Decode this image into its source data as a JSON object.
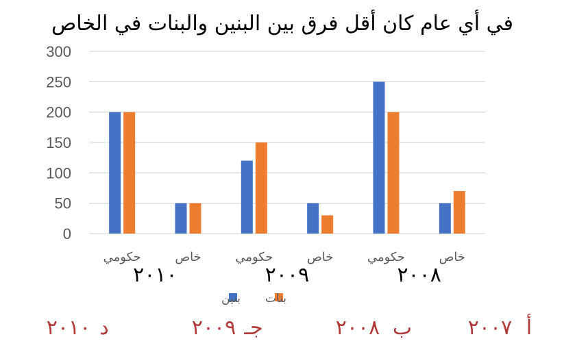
{
  "chart_data": {
    "type": "bar",
    "title": "في أي عام كان أقل فرق بين البنين والبنات في الخاص",
    "categories": [
      "حكومي",
      "خاص",
      "حكومي",
      "خاص",
      "حكومي",
      "خاص"
    ],
    "groups": [
      "٢٠١٠",
      "٢٠٠٩",
      "٢٠٠٨"
    ],
    "series": [
      {
        "name": "بنين",
        "color": "#4472C4",
        "values": [
          200,
          50,
          120,
          50,
          250,
          50
        ]
      },
      {
        "name": "بنات",
        "color": "#ED7D31",
        "values": [
          200,
          50,
          150,
          30,
          200,
          70
        ]
      }
    ],
    "yticks": [
      0,
      50,
      100,
      150,
      200,
      250,
      300
    ],
    "ylim": [
      0,
      300
    ],
    "grid": true,
    "legend_position": "bottom"
  },
  "choices": [
    {
      "letter": "أ",
      "value": "٢٠٠٧"
    },
    {
      "letter": "ب",
      "value": "٢٠٠٨"
    },
    {
      "letter": "جـ",
      "value": "٢٠٠٩"
    },
    {
      "letter": "د",
      "value": "٢٠١٠"
    }
  ]
}
